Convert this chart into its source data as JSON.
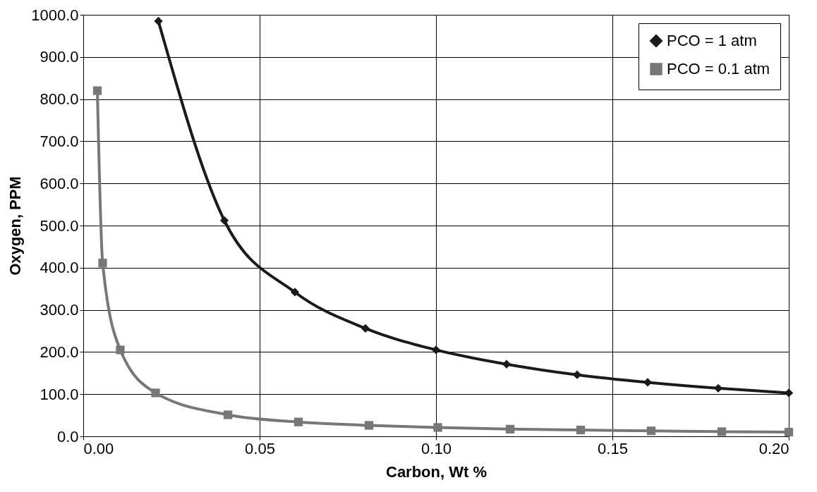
{
  "chart_data": {
    "type": "line",
    "xlabel": "Carbon, Wt %",
    "ylabel": "Oxygen, PPM",
    "xlim": [
      0,
      0.2
    ],
    "ylim": [
      0,
      1000
    ],
    "xticks": [
      {
        "value": 0,
        "label": "0.00"
      },
      {
        "value": 0.05,
        "label": "0.05"
      },
      {
        "value": 0.1,
        "label": "0.10"
      },
      {
        "value": 0.15,
        "label": "0.15"
      },
      {
        "value": 0.2,
        "label": "0.20"
      }
    ],
    "yticks": [
      {
        "value": 0,
        "label": "0.0"
      },
      {
        "value": 100,
        "label": "100.0"
      },
      {
        "value": 200,
        "label": "200.0"
      },
      {
        "value": 300,
        "label": "300.0"
      },
      {
        "value": 400,
        "label": "400.0"
      },
      {
        "value": 500,
        "label": "500.0"
      },
      {
        "value": 600,
        "label": "600.0"
      },
      {
        "value": 700,
        "label": "700.0"
      },
      {
        "value": 800,
        "label": "800.0"
      },
      {
        "value": 900,
        "label": "900.0"
      },
      {
        "value": 1000,
        "label": "1000.0"
      }
    ],
    "grid": true,
    "legend": "top right",
    "line_style": "solid",
    "series": [
      {
        "name": "PCO = 1 atm",
        "color": "#1a1a1a",
        "marker": "diamond",
        "x": [
          0.0213,
          0.04,
          0.06,
          0.08,
          0.1,
          0.12,
          0.14,
          0.16,
          0.18,
          0.2
        ],
        "values": [
          985,
          512,
          342,
          256,
          205,
          171,
          146,
          128,
          114,
          103
        ]
      },
      {
        "name": "PCO = 0.1 atm",
        "color": "#777777",
        "marker": "square",
        "x": [
          0.004,
          0.0055,
          0.0105,
          0.0205,
          0.041,
          0.061,
          0.081,
          0.1005,
          0.121,
          0.141,
          0.161,
          0.181,
          0.2
        ],
        "values": [
          820,
          411,
          205,
          103,
          51,
          34,
          26,
          21,
          17,
          15,
          13,
          11,
          10
        ]
      }
    ]
  }
}
